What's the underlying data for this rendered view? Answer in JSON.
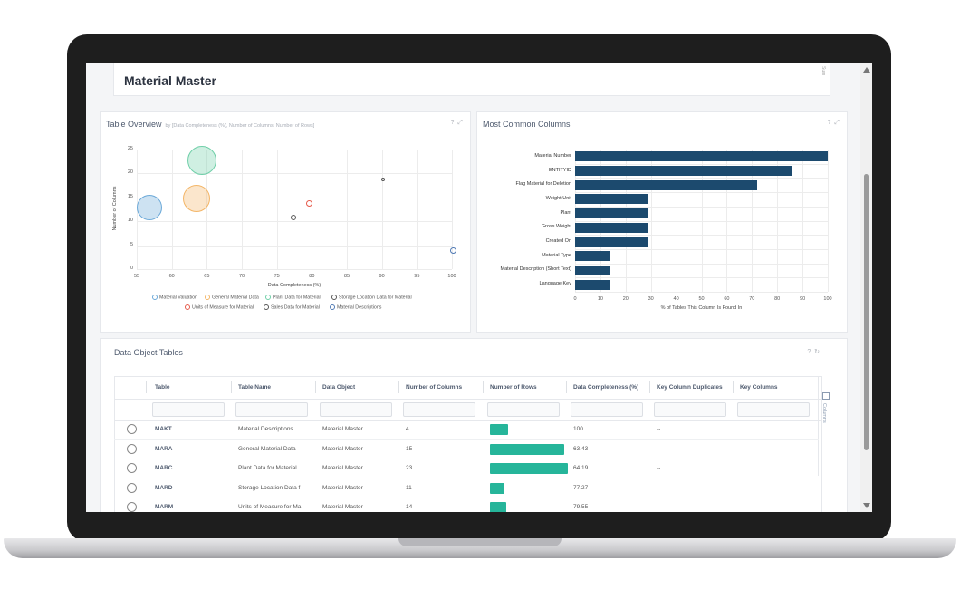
{
  "header": {
    "title": "Material Master",
    "side_tab": "Sum"
  },
  "table_overview": {
    "title": "Table Overview",
    "subtitle": "by [Data Completeness (%), Number of Columns, Number of Rows]",
    "help_icon": "question-icon",
    "expand_icon": "expand-icon"
  },
  "most_common_columns": {
    "title": "Most Common Columns",
    "help_icon": "question-icon",
    "expand_icon": "expand-icon"
  },
  "chart_data": [
    {
      "type": "scatter",
      "title": "Table Overview",
      "xlabel": "Data Completeness (%)",
      "ylabel": "Number of Columns",
      "xlim": [
        55,
        100
      ],
      "ylim": [
        0,
        25
      ],
      "x_ticks": [
        "55",
        "60",
        "65",
        "70",
        "75",
        "80",
        "85",
        "90",
        "95",
        "100"
      ],
      "y_ticks": [
        "0",
        "5",
        "10",
        "15",
        "20",
        "25"
      ],
      "grid": true,
      "legend_position": "bottom",
      "legend": [
        "Material Valuation",
        "General Material Data",
        "Plant Data for Material",
        "Storage Location Data for Material",
        "Units of Measure for Material",
        "Sales Data for Material",
        "Material Descriptions"
      ],
      "series": [
        {
          "name": "Material Valuation",
          "x": 56.7,
          "y": 13,
          "size": 25,
          "color": "#6aa8d8"
        },
        {
          "name": "General Material Data",
          "x": 63.43,
          "y": 15,
          "size": 27,
          "color": "#f3b566"
        },
        {
          "name": "Plant Data for Material",
          "x": 64.19,
          "y": 23,
          "size": 29,
          "color": "#6fcfa8"
        },
        {
          "name": "Storage Location Data for Material",
          "x": 77.27,
          "y": 11,
          "size": 3,
          "color": "#555555"
        },
        {
          "name": "Units of Measure for Material",
          "x": 79.55,
          "y": 14,
          "size": 4,
          "color": "#e65a4a"
        },
        {
          "name": "Sales Data for Material",
          "x": 90,
          "y": 19,
          "size": 1,
          "color": "#555555"
        },
        {
          "name": "Material Descriptions",
          "x": 100,
          "y": 4,
          "size": 4,
          "color": "#4f79b3"
        }
      ]
    },
    {
      "type": "bar",
      "orientation": "horizontal",
      "title": "Most Common Columns",
      "xlabel": "% of Tables This Column Is Found In",
      "xlim": [
        0,
        100
      ],
      "x_ticks": [
        "0",
        "10",
        "20",
        "30",
        "40",
        "50",
        "60",
        "70",
        "80",
        "90",
        "100"
      ],
      "categories": [
        "Material Number",
        "ENTITYID",
        "Flag Material for Deletion",
        "Weight Unit",
        "Plant",
        "Gross Weight",
        "Created On",
        "Material Type",
        "Material Description (Short Text)",
        "Language Key"
      ],
      "values": [
        100,
        86,
        72,
        29,
        29,
        29,
        29,
        14,
        14,
        14
      ],
      "color": "#1c4a6e"
    }
  ],
  "data_object_tables": {
    "title": "Data Object Tables",
    "help_icon": "question-icon",
    "refresh_icon": "refresh-icon",
    "columns_tab": "Columns",
    "headers": [
      "Table",
      "Table Name",
      "Data Object",
      "Number of Columns",
      "Number of Rows",
      "Data Completeness (%)",
      "Key Column Duplicates",
      "Key Columns"
    ],
    "max_rows_fraction_note": "",
    "rows": [
      {
        "table": "MAKT",
        "name": "Material Descriptions",
        "object": "Material Master",
        "cols": "4",
        "rows_fraction": 0.22,
        "completeness": "100",
        "dup": "--"
      },
      {
        "table": "MARA",
        "name": "General Material Data",
        "object": "Material Master",
        "cols": "15",
        "rows_fraction": 0.92,
        "completeness": "63.43",
        "dup": "--"
      },
      {
        "table": "MARC",
        "name": "Plant Data for Material",
        "object": "Material Master",
        "cols": "23",
        "rows_fraction": 0.97,
        "completeness": "64.19",
        "dup": "--"
      },
      {
        "table": "MARD",
        "name": "Storage Location Data f",
        "object": "Material Master",
        "cols": "11",
        "rows_fraction": 0.18,
        "completeness": "77.27",
        "dup": "--"
      },
      {
        "table": "MARM",
        "name": "Units of Measure for Ma",
        "object": "Material Master",
        "cols": "14",
        "rows_fraction": 0.2,
        "completeness": "79.55",
        "dup": "--"
      }
    ]
  },
  "colors": {
    "accent_bar": "#1c4a6e",
    "rows_bar": "#26b59a",
    "title_text": "#4e5a6e"
  }
}
